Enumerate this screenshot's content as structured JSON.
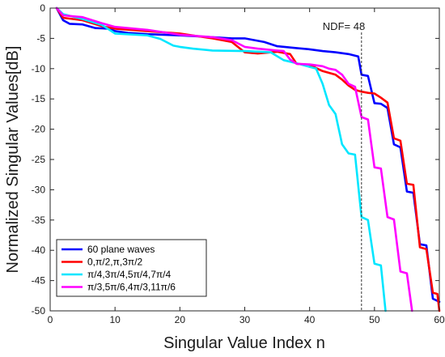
{
  "chart_data": {
    "type": "line",
    "title": "",
    "xlabel": "Singular Value Index n",
    "ylabel": "Normalized Singular Values[dB]",
    "xlim": [
      0,
      60
    ],
    "ylim": [
      -50,
      0
    ],
    "xticks": [
      0,
      10,
      20,
      30,
      40,
      50,
      60
    ],
    "yticks": [
      0,
      -5,
      -10,
      -15,
      -20,
      -25,
      -30,
      -35,
      -40,
      -45,
      -50
    ],
    "grid": false,
    "legend_position": "bottom-left",
    "annotation": {
      "text": "NDF= 48",
      "x": 48
    },
    "series": [
      {
        "name": "60 plane waves",
        "color": "#0000ff",
        "points": [
          [
            1,
            0
          ],
          [
            2,
            -2
          ],
          [
            3,
            -2.6
          ],
          [
            5,
            -2.7
          ],
          [
            7,
            -3.3
          ],
          [
            9,
            -3.4
          ],
          [
            10,
            -3.8
          ],
          [
            12,
            -4.1
          ],
          [
            15,
            -4.3
          ],
          [
            20,
            -4.5
          ],
          [
            25,
            -4.8
          ],
          [
            28,
            -5.0
          ],
          [
            30,
            -5.0
          ],
          [
            33,
            -5.6
          ],
          [
            35,
            -6.3
          ],
          [
            38,
            -6.6
          ],
          [
            40,
            -6.8
          ],
          [
            42,
            -7.1
          ],
          [
            44,
            -7.3
          ],
          [
            46,
            -7.6
          ],
          [
            47.5,
            -8.0
          ],
          [
            48,
            -11.0
          ],
          [
            49,
            -11.2
          ],
          [
            50,
            -15.7
          ],
          [
            51,
            -15.8
          ],
          [
            52,
            -16.5
          ],
          [
            53,
            -22.5
          ],
          [
            54,
            -23.0
          ],
          [
            55,
            -30.3
          ],
          [
            56,
            -30.5
          ],
          [
            57,
            -39.0
          ],
          [
            58,
            -39.2
          ],
          [
            59,
            -48.0
          ],
          [
            60,
            -48.5
          ]
        ]
      },
      {
        "name": "0,π/2,π,3π/2",
        "color": "#ff0000",
        "points": [
          [
            1,
            0
          ],
          [
            2,
            -1.6
          ],
          [
            5,
            -2.0
          ],
          [
            8,
            -3.0
          ],
          [
            10,
            -3.4
          ],
          [
            15,
            -3.8
          ],
          [
            20,
            -4.2
          ],
          [
            25,
            -5.0
          ],
          [
            28,
            -5.6
          ],
          [
            30,
            -7.3
          ],
          [
            32,
            -7.5
          ],
          [
            35,
            -7.2
          ],
          [
            37,
            -7.6
          ],
          [
            38,
            -9.2
          ],
          [
            40,
            -9.4
          ],
          [
            42,
            -10.4
          ],
          [
            44,
            -11.0
          ],
          [
            45,
            -11.8
          ],
          [
            46,
            -12.8
          ],
          [
            47,
            -13.5
          ],
          [
            48,
            -13.8
          ],
          [
            49,
            -14.0
          ],
          [
            50,
            -14.1
          ],
          [
            51,
            -14.8
          ],
          [
            52,
            -15.6
          ],
          [
            53,
            -21.5
          ],
          [
            54,
            -21.9
          ],
          [
            55,
            -29.0
          ],
          [
            56,
            -29.2
          ],
          [
            57,
            -39.5
          ],
          [
            58,
            -39.8
          ],
          [
            59,
            -47.0
          ],
          [
            59.7,
            -47.2
          ],
          [
            60,
            -50.0
          ]
        ]
      },
      {
        "name": "π/4,3π/4,5π/4,7π/4",
        "color": "#00e6ff",
        "points": [
          [
            1,
            0
          ],
          [
            2,
            -1.0
          ],
          [
            5,
            -1.8
          ],
          [
            8,
            -2.8
          ],
          [
            10,
            -4.2
          ],
          [
            15,
            -4.5
          ],
          [
            17,
            -5.1
          ],
          [
            19,
            -6.2
          ],
          [
            20,
            -6.4
          ],
          [
            22,
            -6.7
          ],
          [
            25,
            -7.0
          ],
          [
            30,
            -7.1
          ],
          [
            34,
            -7.3
          ],
          [
            36,
            -8.6
          ],
          [
            38,
            -9.1
          ],
          [
            40,
            -9.7
          ],
          [
            41,
            -10.0
          ],
          [
            42,
            -12.5
          ],
          [
            43,
            -16.0
          ],
          [
            44,
            -17.5
          ],
          [
            45,
            -22.5
          ],
          [
            46,
            -24.0
          ],
          [
            47,
            -24.2
          ],
          [
            48,
            -34.5
          ],
          [
            49,
            -35.0
          ],
          [
            50,
            -42.2
          ],
          [
            51,
            -42.5
          ],
          [
            51.7,
            -50.0
          ]
        ]
      },
      {
        "name": "π/3,5π/6,4π/3,11π/6",
        "color": "#ff00ff",
        "points": [
          [
            1,
            0
          ],
          [
            2,
            -1.2
          ],
          [
            5,
            -1.5
          ],
          [
            8,
            -2.5
          ],
          [
            10,
            -3.1
          ],
          [
            15,
            -3.6
          ],
          [
            20,
            -4.4
          ],
          [
            25,
            -4.8
          ],
          [
            28,
            -5.3
          ],
          [
            30,
            -6.4
          ],
          [
            32,
            -6.7
          ],
          [
            35,
            -7.0
          ],
          [
            36,
            -7.1
          ],
          [
            37,
            -8.5
          ],
          [
            38,
            -9.2
          ],
          [
            40,
            -9.3
          ],
          [
            42,
            -9.6
          ],
          [
            43,
            -10.0
          ],
          [
            44,
            -10.2
          ],
          [
            45,
            -11.0
          ],
          [
            46,
            -12.5
          ],
          [
            47,
            -13.0
          ],
          [
            48,
            -18.0
          ],
          [
            49,
            -18.4
          ],
          [
            50,
            -26.3
          ],
          [
            51,
            -26.5
          ],
          [
            52,
            -34.5
          ],
          [
            53,
            -34.9
          ],
          [
            54,
            -43.5
          ],
          [
            55,
            -43.8
          ],
          [
            55.8,
            -50.0
          ]
        ]
      }
    ]
  }
}
